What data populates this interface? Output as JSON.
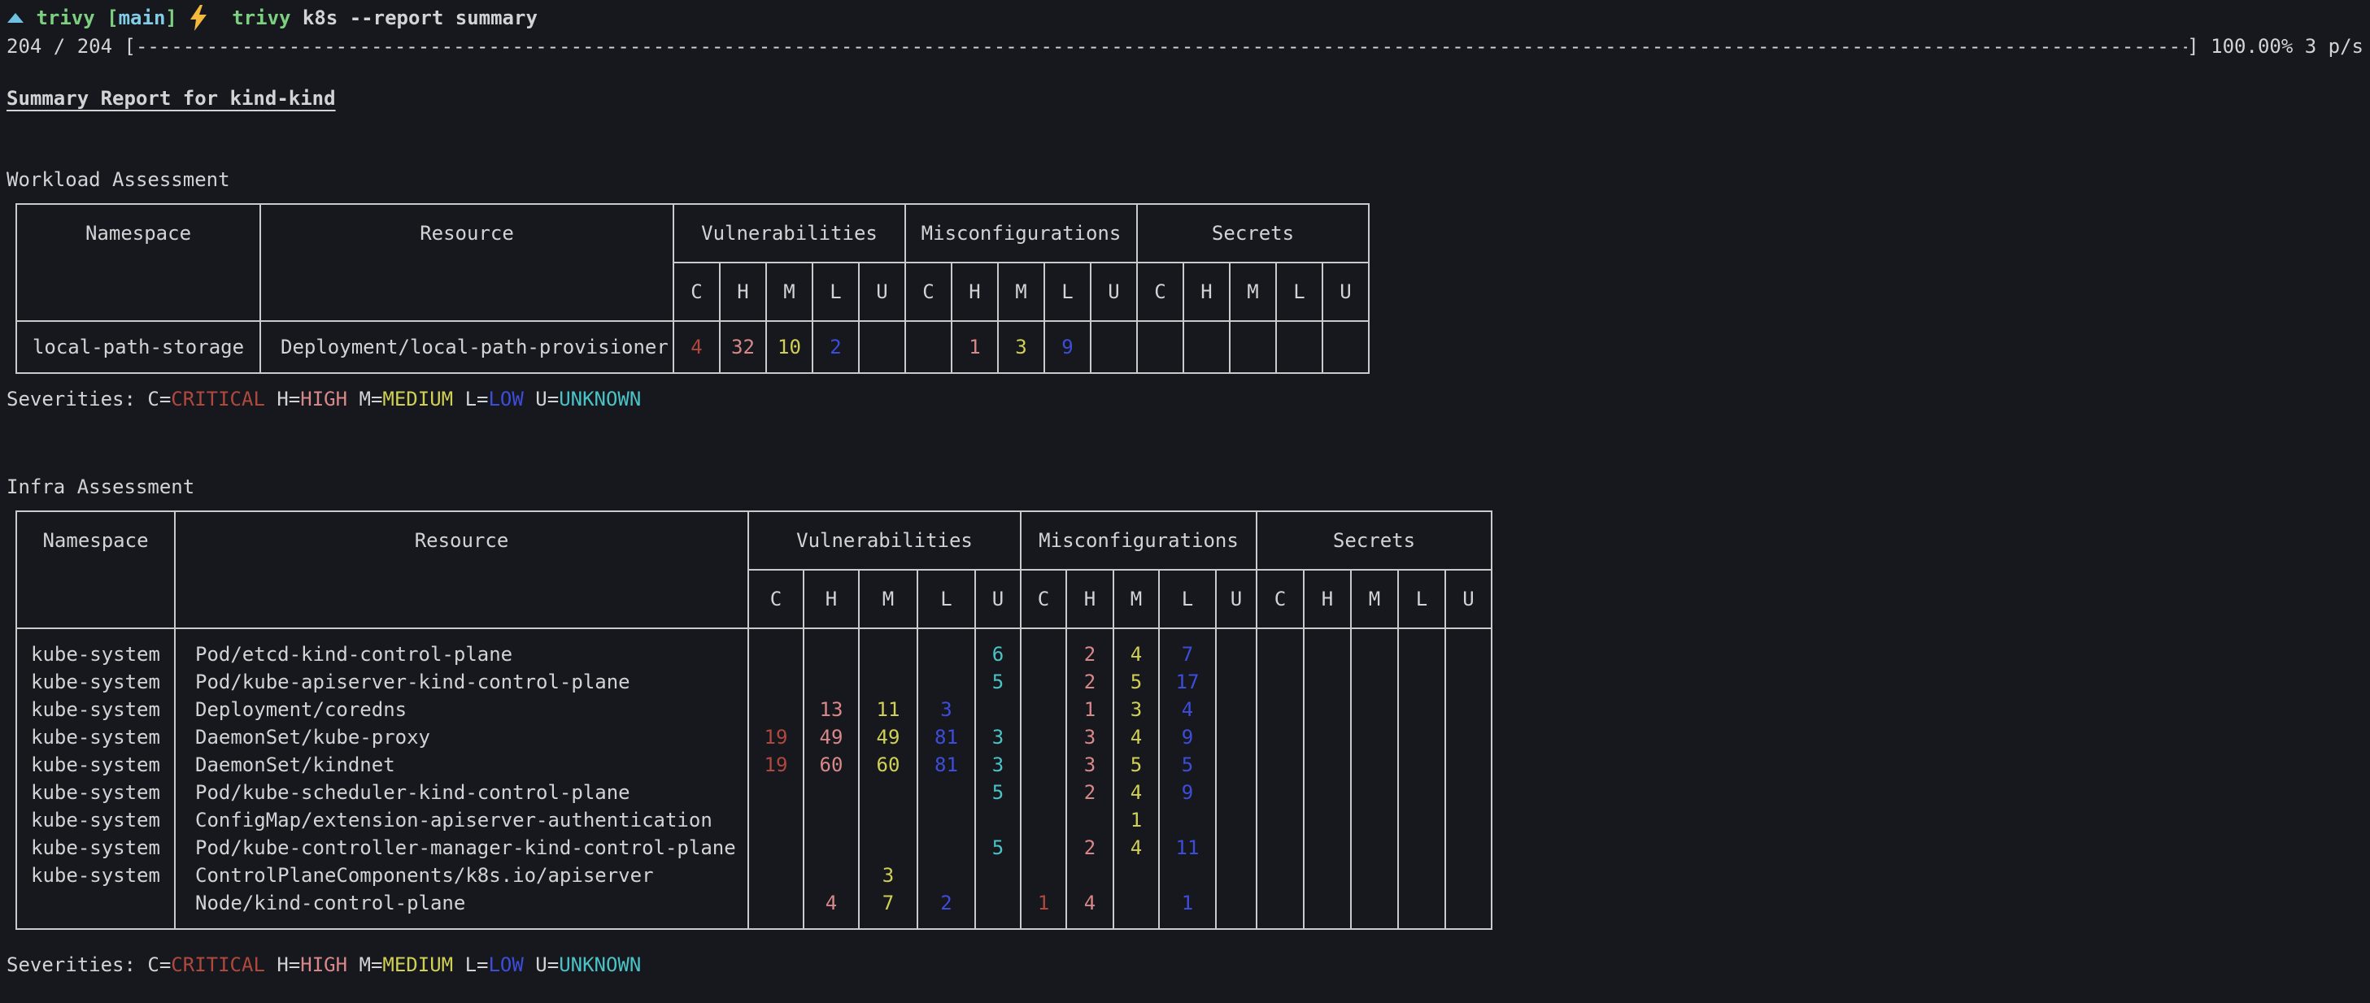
{
  "terminal": {
    "prompt": {
      "segments": [
        {
          "icon": "triangle",
          "color": "#6fc1e2"
        },
        {
          "text": " ",
          "color": "#d2d3d5"
        },
        {
          "text": "trivy",
          "color": "#7ed081"
        },
        {
          "text": " ",
          "color": "#d2d3d5"
        },
        {
          "text": "[",
          "color": "#7ed081"
        },
        {
          "text": "main",
          "color": "#82cde8"
        },
        {
          "text": "]",
          "color": "#7ed081"
        },
        {
          "text": " ",
          "color": "#d2d3d5"
        },
        {
          "icon": "lightning",
          "color": "#f2b93c"
        },
        {
          "text": "  ",
          "color": "#d2d3d5"
        },
        {
          "text": "trivy",
          "color": "#7ed081"
        },
        {
          "text": " k8s --report summary",
          "color": "#d2d3d5"
        }
      ]
    },
    "progress": {
      "prefix": "204 / 204 [",
      "bar_char": "-",
      "suffix": "] 100.00% 3 p/s"
    }
  },
  "report": {
    "title": "Summary Report for kind-kind",
    "severity_colors": {
      "critical": "#b0483d",
      "high": "#d98889",
      "medium": "#d0d054",
      "low": "#3d4ddb",
      "unknown": "#4ac3c6"
    },
    "legend": {
      "prefix": "Severities: ",
      "items": [
        {
          "label": "C=",
          "value": "CRITICAL",
          "severity": "critical"
        },
        {
          "label": "H=",
          "value": "HIGH",
          "severity": "high"
        },
        {
          "label": "M=",
          "value": "MEDIUM",
          "severity": "medium"
        },
        {
          "label": "L=",
          "value": "LOW",
          "severity": "low"
        },
        {
          "label": "U=",
          "value": "UNKNOWN",
          "severity": "unknown"
        }
      ]
    },
    "sections": [
      {
        "heading": "Workload Assessment",
        "table": {
          "columns": {
            "namespace": "Namespace",
            "resource": "Resource"
          },
          "groups": [
            {
              "label": "Vulnerabilities"
            },
            {
              "label": "Misconfigurations"
            },
            {
              "label": "Secrets"
            }
          ],
          "subcolumns": [
            "C",
            "H",
            "M",
            "L",
            "U"
          ],
          "rows": [
            {
              "namespace": "local-path-storage",
              "resource": "Deployment/local-path-provisioner",
              "vulnerabilities": [
                "4",
                "32",
                "10",
                "2",
                ""
              ],
              "misconfigurations": [
                "",
                "1",
                "3",
                "9",
                ""
              ],
              "secrets": [
                "",
                "",
                "",
                "",
                ""
              ]
            }
          ]
        }
      },
      {
        "heading": "Infra Assessment",
        "table": {
          "columns": {
            "namespace": "Namespace",
            "resource": "Resource"
          },
          "groups": [
            {
              "label": "Vulnerabilities"
            },
            {
              "label": "Misconfigurations"
            },
            {
              "label": "Secrets"
            }
          ],
          "subcolumns": [
            "C",
            "H",
            "M",
            "L",
            "U"
          ],
          "rows": [
            {
              "namespace": "kube-system",
              "resource": "Pod/etcd-kind-control-plane",
              "vulnerabilities": [
                "",
                "",
                "",
                "",
                "6"
              ],
              "misconfigurations": [
                "",
                "2",
                "4",
                "7",
                ""
              ],
              "secrets": [
                "",
                "",
                "",
                "",
                ""
              ]
            },
            {
              "namespace": "kube-system",
              "resource": "Pod/kube-apiserver-kind-control-plane",
              "vulnerabilities": [
                "",
                "",
                "",
                "",
                "5"
              ],
              "misconfigurations": [
                "",
                "2",
                "5",
                "17",
                ""
              ],
              "secrets": [
                "",
                "",
                "",
                "",
                ""
              ]
            },
            {
              "namespace": "kube-system",
              "resource": "Deployment/coredns",
              "vulnerabilities": [
                "",
                "13",
                "11",
                "3",
                ""
              ],
              "misconfigurations": [
                "",
                "1",
                "3",
                "4",
                ""
              ],
              "secrets": [
                "",
                "",
                "",
                "",
                ""
              ]
            },
            {
              "namespace": "kube-system",
              "resource": "DaemonSet/kube-proxy",
              "vulnerabilities": [
                "19",
                "49",
                "49",
                "81",
                "3"
              ],
              "misconfigurations": [
                "",
                "3",
                "4",
                "9",
                ""
              ],
              "secrets": [
                "",
                "",
                "",
                "",
                ""
              ]
            },
            {
              "namespace": "kube-system",
              "resource": "DaemonSet/kindnet",
              "vulnerabilities": [
                "19",
                "60",
                "60",
                "81",
                "3"
              ],
              "misconfigurations": [
                "",
                "3",
                "5",
                "5",
                ""
              ],
              "secrets": [
                "",
                "",
                "",
                "",
                ""
              ]
            },
            {
              "namespace": "kube-system",
              "resource": "Pod/kube-scheduler-kind-control-plane",
              "vulnerabilities": [
                "",
                "",
                "",
                "",
                "5"
              ],
              "misconfigurations": [
                "",
                "2",
                "4",
                "9",
                ""
              ],
              "secrets": [
                "",
                "",
                "",
                "",
                ""
              ]
            },
            {
              "namespace": "kube-system",
              "resource": "ConfigMap/extension-apiserver-authentication",
              "vulnerabilities": [
                "",
                "",
                "",
                "",
                ""
              ],
              "misconfigurations": [
                "",
                "",
                "1",
                "",
                ""
              ],
              "secrets": [
                "",
                "",
                "",
                "",
                ""
              ]
            },
            {
              "namespace": "kube-system",
              "resource": "Pod/kube-controller-manager-kind-control-plane",
              "vulnerabilities": [
                "",
                "",
                "",
                "",
                "5"
              ],
              "misconfigurations": [
                "",
                "2",
                "4",
                "11",
                ""
              ],
              "secrets": [
                "",
                "",
                "",
                "",
                ""
              ]
            },
            {
              "namespace": "kube-system",
              "resource": "ControlPlaneComponents/k8s.io/apiserver",
              "vulnerabilities": [
                "",
                "",
                "3",
                "",
                ""
              ],
              "misconfigurations": [
                "",
                "",
                "",
                "",
                ""
              ],
              "secrets": [
                "",
                "",
                "",
                "",
                ""
              ]
            },
            {
              "namespace": "",
              "resource": "Node/kind-control-plane",
              "vulnerabilities": [
                "",
                "4",
                "7",
                "2",
                ""
              ],
              "misconfigurations": [
                "1",
                "4",
                "",
                "1",
                ""
              ],
              "secrets": [
                "",
                "",
                "",
                "",
                ""
              ]
            }
          ]
        }
      }
    ]
  }
}
